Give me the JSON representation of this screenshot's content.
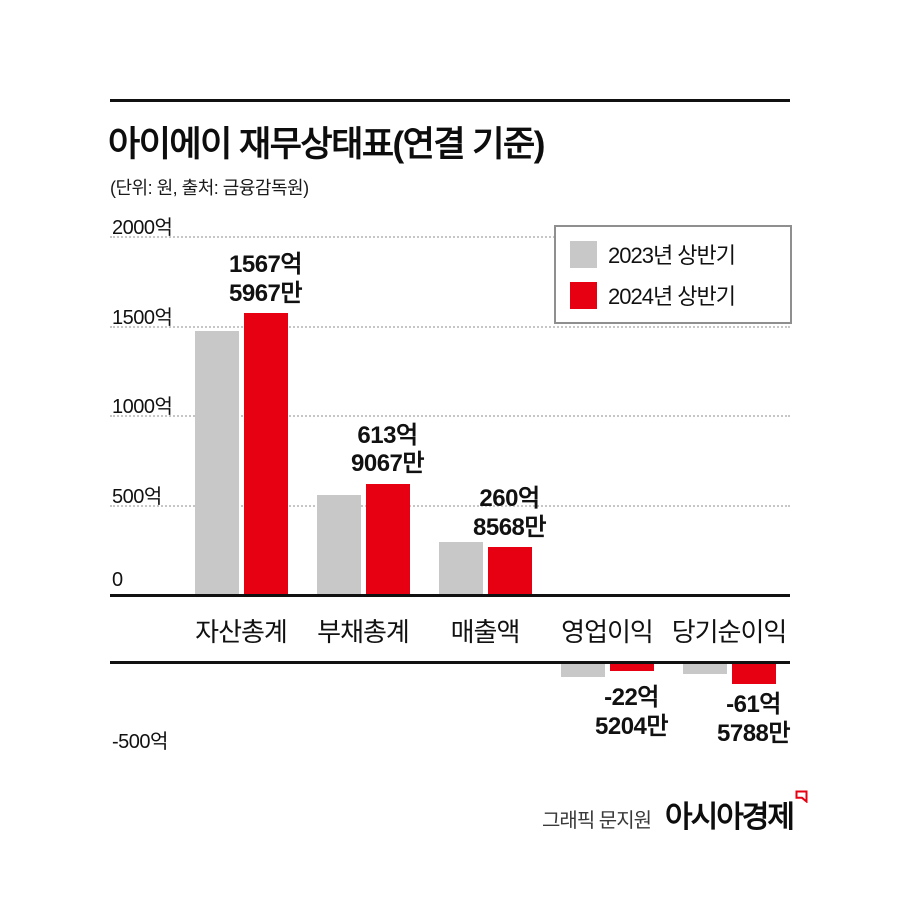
{
  "title": "아이에이 재무상태표(연결 기준)",
  "subtitle": "(단위: 원, 출처: 금융감독원)",
  "colors": {
    "accent_red": "#e60012",
    "bar_gray": "#c8c8c8",
    "axis_black": "#111111"
  },
  "legend": [
    {
      "label": "2023년 상반기",
      "color": "#c8c8c8"
    },
    {
      "label": "2024년 상반기",
      "color": "#e60012"
    }
  ],
  "chart_data": {
    "type": "bar",
    "title": "아이에이 재무상태표(연결 기준)",
    "unit_note": "단위: 원",
    "source": "금융감독원",
    "categories": [
      "자산총계",
      "부채총계",
      "매출액",
      "영업이익",
      "당기순이익"
    ],
    "series": [
      {
        "name": "2023년 상반기",
        "color": "#c8c8c8",
        "values": [
          1470,
          555,
          290,
          -40,
          -30
        ]
      },
      {
        "name": "2024년 상반기",
        "color": "#e60012",
        "values": [
          1567.5967,
          613.9067,
          260.8568,
          -22.5204,
          -61.5788
        ]
      }
    ],
    "bar_labels": [
      [
        "1567억",
        "5967만"
      ],
      [
        "613억",
        "9067만"
      ],
      [
        "260억",
        "8568만"
      ],
      [
        "-22억",
        "5204만"
      ],
      [
        "-61억",
        "5788만"
      ]
    ],
    "yticks": [
      2000,
      1500,
      1000,
      500,
      0,
      -500
    ],
    "ytick_labels": [
      "2000억",
      "1500억",
      "1000억",
      "500억",
      "0",
      "-500억"
    ],
    "ylim": [
      -500,
      2000
    ],
    "y_unit": "억 원",
    "grid": "dotted horizontal",
    "legend_position": "top-right"
  },
  "credit": {
    "text": "그래픽 문지원",
    "brand": "아시아경제"
  }
}
